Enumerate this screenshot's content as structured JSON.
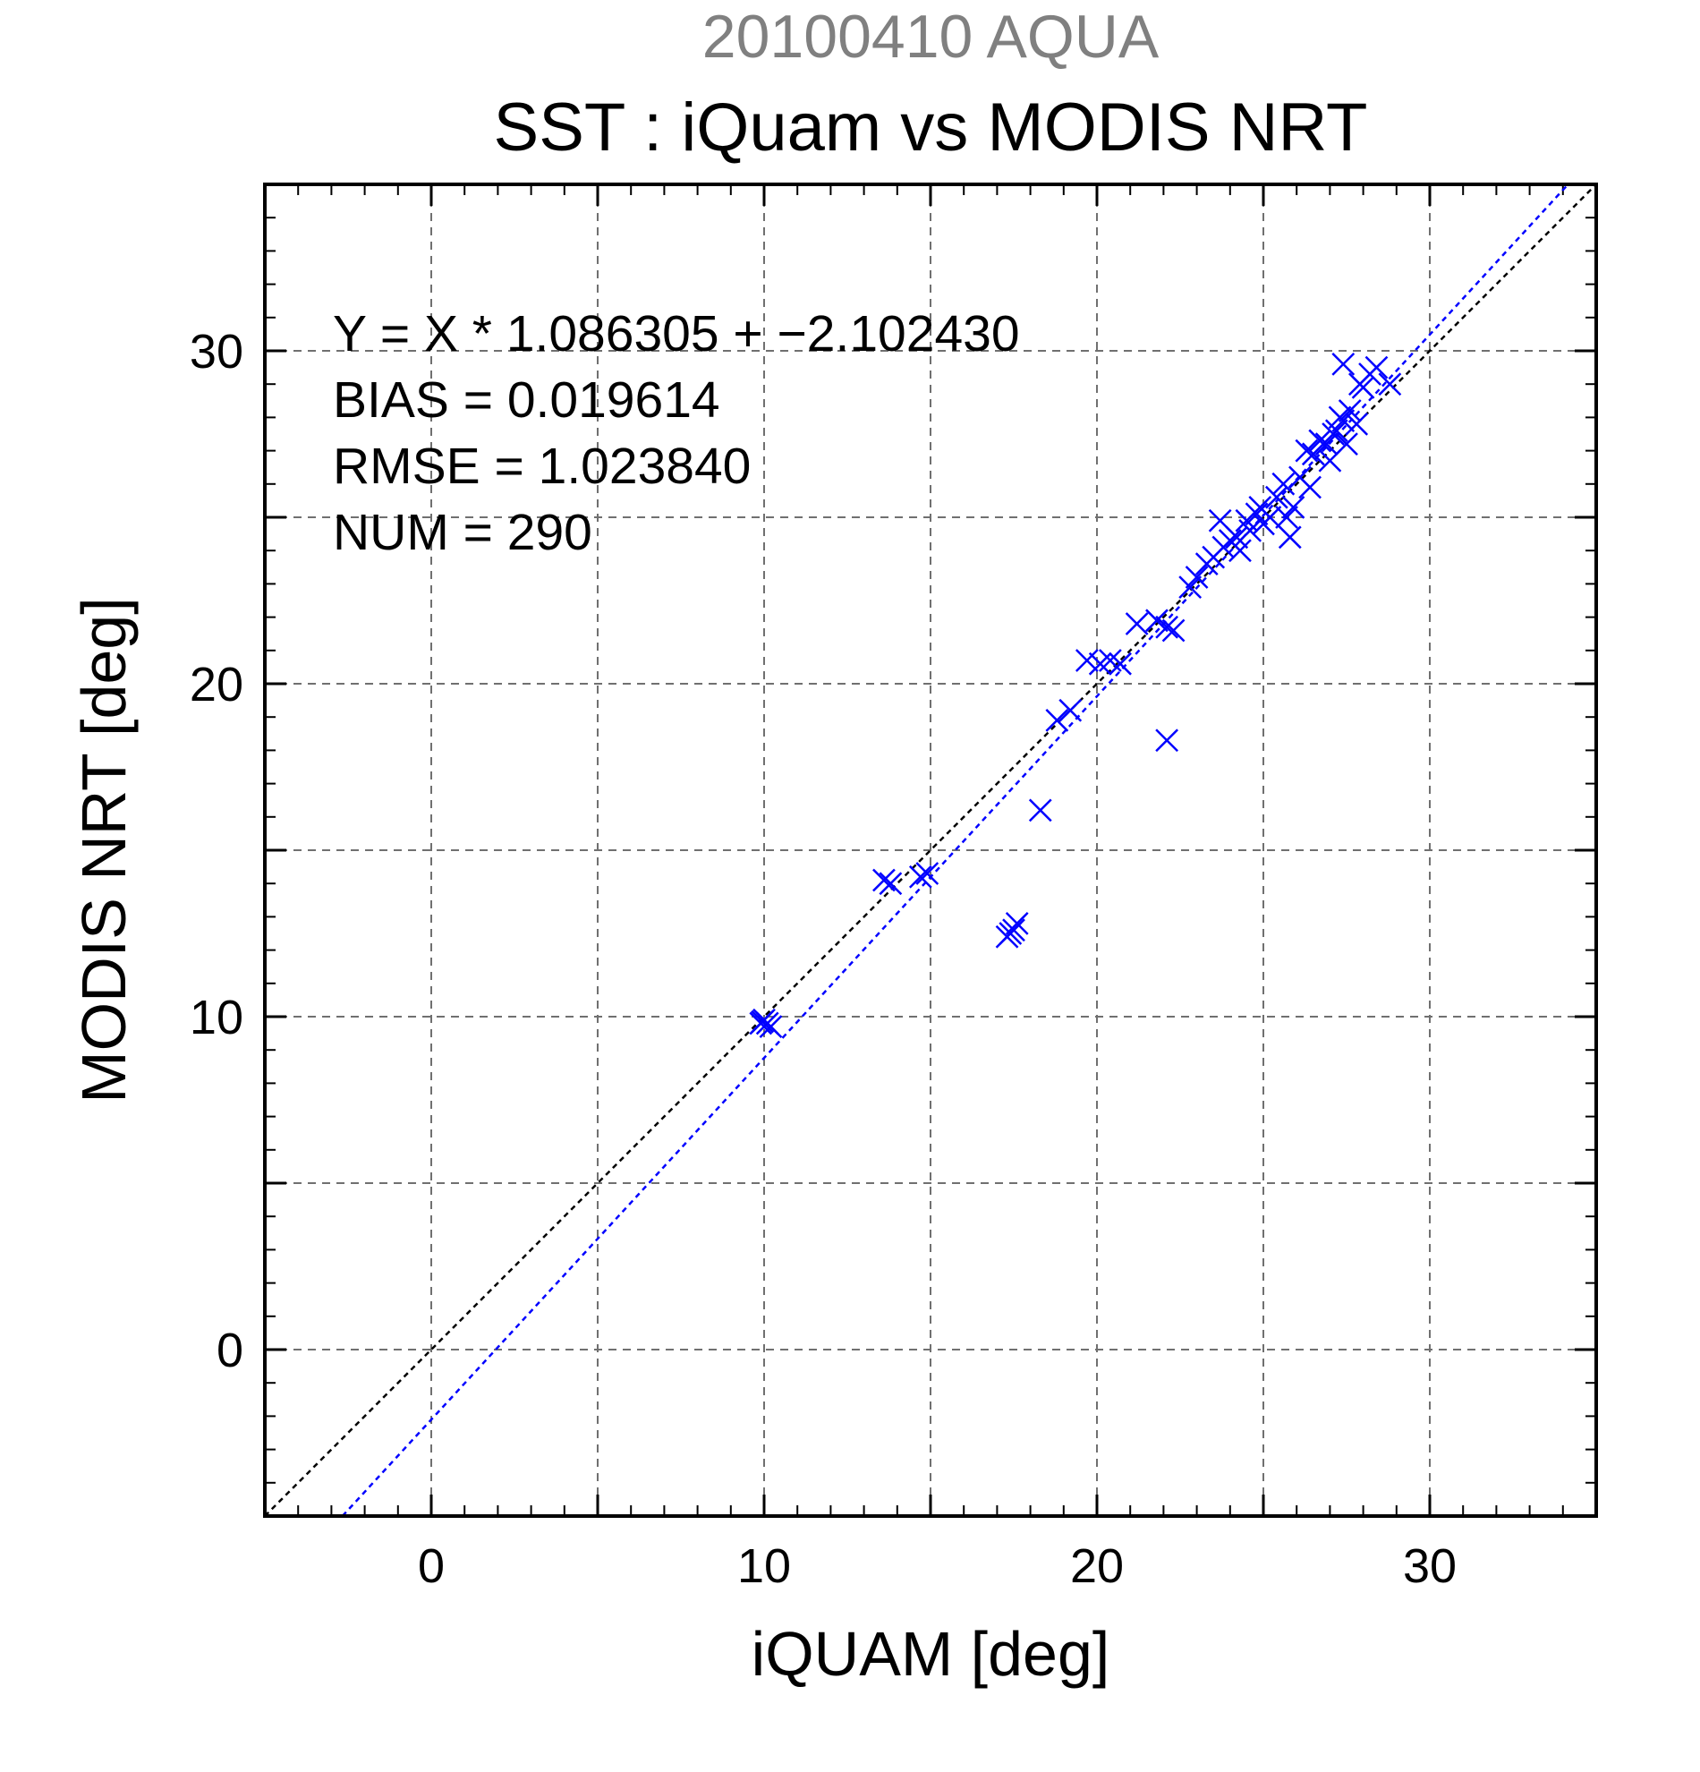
{
  "chart_data": {
    "type": "scatter",
    "supertitle": "20100410 AQUA",
    "title": "SST : iQuam vs MODIS NRT",
    "xlabel": "iQUAM [deg]",
    "ylabel": "MODIS NRT [deg]",
    "xlim": [
      -5,
      35
    ],
    "ylim": [
      -5,
      35
    ],
    "xticks": [
      "0",
      "10",
      "20",
      "30"
    ],
    "yticks": [
      "0",
      "10",
      "20",
      "30"
    ],
    "grid": true,
    "stats": {
      "equation": "Y = X * 1.086305 + −2.102430",
      "bias": "BIAS = 0.019614",
      "rmse": "RMSE = 1.023840",
      "num": "NUM = 290"
    },
    "lines": [
      {
        "kind": "identity",
        "slope": 1.0,
        "intercept": 0.0,
        "color": "#000000"
      },
      {
        "kind": "regression",
        "slope": 1.086305,
        "intercept": -2.10243,
        "color": "#0000ff"
      }
    ],
    "marker": {
      "shape": "x",
      "color": "#0000ff"
    },
    "series": [
      {
        "points": [
          [
            9.9,
            9.8
          ],
          [
            10.0,
            9.9
          ],
          [
            10.1,
            9.8
          ],
          [
            10.2,
            9.7
          ],
          [
            9.95,
            9.85
          ],
          [
            13.6,
            14.1
          ],
          [
            13.8,
            14.0
          ],
          [
            14.7,
            14.2
          ],
          [
            14.9,
            14.3
          ],
          [
            17.3,
            12.4
          ],
          [
            17.5,
            12.6
          ],
          [
            17.6,
            12.8
          ],
          [
            17.4,
            12.5
          ],
          [
            18.3,
            16.2
          ],
          [
            18.8,
            18.9
          ],
          [
            19.2,
            19.2
          ],
          [
            19.7,
            20.7
          ],
          [
            20.1,
            20.6
          ],
          [
            20.4,
            20.7
          ],
          [
            20.7,
            20.6
          ],
          [
            21.2,
            21.8
          ],
          [
            21.8,
            21.9
          ],
          [
            22.1,
            21.7
          ],
          [
            22.3,
            21.6
          ],
          [
            22.1,
            18.3
          ],
          [
            22.8,
            22.9
          ],
          [
            23.0,
            23.2
          ],
          [
            23.3,
            23.6
          ],
          [
            23.5,
            23.8
          ],
          [
            23.8,
            24.1
          ],
          [
            23.7,
            24.9
          ],
          [
            24.0,
            24.3
          ],
          [
            24.2,
            24.4
          ],
          [
            24.3,
            24.0
          ],
          [
            24.5,
            24.9
          ],
          [
            24.6,
            24.6
          ],
          [
            24.8,
            25.1
          ],
          [
            25.0,
            24.8
          ],
          [
            25.2,
            25.0
          ],
          [
            25.4,
            25.6
          ],
          [
            25.6,
            26.0
          ],
          [
            25.8,
            24.4
          ],
          [
            25.9,
            25.3
          ],
          [
            26.1,
            26.2
          ],
          [
            26.3,
            27.0
          ],
          [
            26.5,
            26.9
          ],
          [
            26.7,
            27.3
          ],
          [
            26.9,
            27.2
          ],
          [
            27.0,
            26.7
          ],
          [
            27.2,
            27.6
          ],
          [
            27.4,
            27.9
          ],
          [
            27.5,
            27.2
          ],
          [
            27.6,
            28.2
          ],
          [
            27.8,
            27.8
          ],
          [
            28.0,
            28.9
          ],
          [
            28.2,
            29.3
          ],
          [
            28.4,
            29.5
          ],
          [
            27.4,
            29.6
          ],
          [
            27.9,
            29.0
          ],
          [
            28.8,
            29.0
          ],
          [
            26.4,
            25.9
          ],
          [
            25.7,
            25.0
          ],
          [
            24.9,
            25.3
          ],
          [
            27.1,
            27.5
          ],
          [
            27.3,
            28.0
          ]
        ]
      }
    ]
  }
}
